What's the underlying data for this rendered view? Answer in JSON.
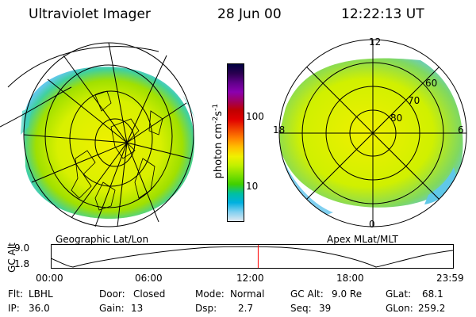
{
  "header": {
    "instrument": "Ultraviolet Imager",
    "date": "28 Jun 00",
    "time": "12:22:13 UT"
  },
  "colorbar": {
    "unit_main": "photon cm",
    "unit_sup1": "-2",
    "unit_mid": "s",
    "unit_sup2": "-1",
    "ticks": [
      "100",
      "10"
    ],
    "colors": [
      "#000040",
      "#2a0050",
      "#60008a",
      "#8a00b0",
      "#a00060",
      "#c00000",
      "#e00000",
      "#f04000",
      "#ff8000",
      "#ffc000",
      "#f0f000",
      "#c0f000",
      "#80e000",
      "#40d000",
      "#00c0a0",
      "#00b0e0",
      "#80d0f0",
      "#e0e8f0"
    ]
  },
  "left_map": {
    "caption": "Geographic Lat/Lon"
  },
  "right_map": {
    "caption": "Apex MLat/MLT",
    "mlt_labels": {
      "top": "12",
      "left": "18",
      "right": "6",
      "bottom": "0"
    },
    "lat_labels": [
      "60",
      "70",
      "80"
    ]
  },
  "altitude_plot": {
    "ylabel": "GC Alt",
    "yticks": [
      "9.0",
      "1.8"
    ],
    "xticks": [
      "00:00",
      "06:00",
      "12:00",
      "18:00",
      "23:59"
    ],
    "cursor_time": "12:22",
    "cursor_color": "#ff0000"
  },
  "info": {
    "row1": [
      {
        "label": "Flt:",
        "value": "LBHL"
      },
      {
        "label": "Door:",
        "value": "Closed"
      },
      {
        "label": "Mode:",
        "value": "Normal"
      },
      {
        "label": "GC Alt:",
        "value": "9.0 Re"
      },
      {
        "label": "GLat:",
        "value": "68.1"
      }
    ],
    "row2": [
      {
        "label": "IP:",
        "value": "36.0"
      },
      {
        "label": "Gain:",
        "value": "13"
      },
      {
        "label": "Dsp:",
        "value": "2.7"
      },
      {
        "label": "Seq:",
        "value": "39"
      },
      {
        "label": "GLon:",
        "value": "259.2"
      }
    ]
  }
}
